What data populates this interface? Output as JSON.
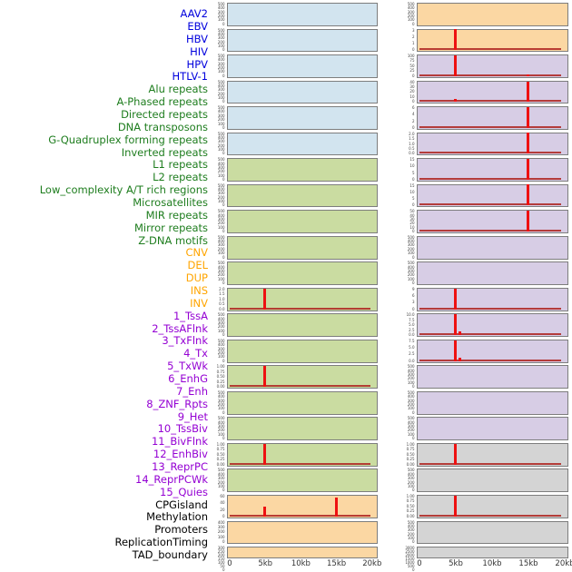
{
  "chart_data": {
    "type": "bar",
    "title": "",
    "x_axis": {
      "unit": "kb",
      "range_kb": [
        0,
        20
      ],
      "ticks": [
        "0",
        "5kb",
        "10kb",
        "15kb",
        "20kb"
      ]
    },
    "legend": "none",
    "grid": false,
    "group_colors": {
      "virus": {
        "label": "#0000dd",
        "bg": "#d2e4ef"
      },
      "repeat": {
        "label": "#1e7d1e",
        "bg": "#cadca1"
      },
      "sv": {
        "label": "#ffa500",
        "bg": "#fbd7a3"
      },
      "chromatin": {
        "label": "#9400d3",
        "bg": "#d7cde5"
      },
      "other": {
        "label": "#000000",
        "bg": "#d4d4d4"
      }
    },
    "spike_color": "#ee1111",
    "panels": [
      {
        "name": "AAV2",
        "group": "virus",
        "yticks": [
          "500",
          "400",
          "300",
          "200",
          "100",
          "0"
        ],
        "spikes": [],
        "baseline": false
      },
      {
        "name": "EBV",
        "group": "virus",
        "yticks": [
          "500",
          "400",
          "300",
          "200",
          "100",
          "0"
        ],
        "spikes": [],
        "baseline": false
      },
      {
        "name": "HBV",
        "group": "virus",
        "yticks": [
          "500",
          "400",
          "300",
          "200",
          "100",
          "0"
        ],
        "spikes": [],
        "baseline": false
      },
      {
        "name": "HIV",
        "group": "virus",
        "yticks": [
          "500",
          "400",
          "300",
          "200",
          "100",
          "0"
        ],
        "spikes": [],
        "baseline": false
      },
      {
        "name": "HPV",
        "group": "virus",
        "yticks": [
          "500",
          "400",
          "300",
          "200",
          "100",
          "0"
        ],
        "spikes": [],
        "baseline": false
      },
      {
        "name": "HTLV-1",
        "group": "virus",
        "yticks": [
          "500",
          "400",
          "300",
          "200",
          "100",
          "0"
        ],
        "spikes": [],
        "baseline": false
      },
      {
        "name": "Alu repeats",
        "group": "repeat",
        "yticks": [
          "500",
          "400",
          "300",
          "200",
          "100",
          "0"
        ],
        "spikes": [],
        "baseline": false
      },
      {
        "name": "A-Phased repeats",
        "group": "repeat",
        "yticks": [
          "500",
          "400",
          "300",
          "200",
          "100",
          "0"
        ],
        "spikes": [],
        "baseline": false
      },
      {
        "name": "Directed repeats",
        "group": "repeat",
        "yticks": [
          "500",
          "400",
          "300",
          "200",
          "100",
          "0"
        ],
        "spikes": [],
        "baseline": false
      },
      {
        "name": "DNA transposons",
        "group": "repeat",
        "yticks": [
          "500",
          "400",
          "300",
          "200",
          "100",
          "0"
        ],
        "spikes": [],
        "baseline": false
      },
      {
        "name": "G-Quadruplex forming repeats",
        "group": "repeat",
        "yticks": [
          "500",
          "400",
          "300",
          "200",
          "100",
          "0"
        ],
        "spikes": [],
        "baseline": false
      },
      {
        "name": "Inverted repeats",
        "group": "repeat",
        "yticks": [
          "2.0",
          "1.5",
          "1.0",
          "0.5",
          "0.0"
        ],
        "spikes": [
          {
            "kb": 5,
            "value": 2.0
          }
        ],
        "baseline": true
      },
      {
        "name": "L1 repeats",
        "group": "repeat",
        "yticks": [
          "500",
          "400",
          "300",
          "200",
          "100",
          "0"
        ],
        "spikes": [],
        "baseline": false
      },
      {
        "name": "L2 repeats",
        "group": "repeat",
        "yticks": [
          "500",
          "400",
          "300",
          "200",
          "100",
          "0"
        ],
        "spikes": [],
        "baseline": false
      },
      {
        "name": "Low_complexity A/T rich regions",
        "group": "repeat",
        "yticks": [
          "1.00",
          "0.75",
          "0.50",
          "0.25",
          "0.00"
        ],
        "spikes": [
          {
            "kb": 5,
            "value": 1.0
          }
        ],
        "baseline": true
      },
      {
        "name": "Microsatellites",
        "group": "repeat",
        "yticks": [
          "500",
          "400",
          "300",
          "200",
          "100",
          "0"
        ],
        "spikes": [],
        "baseline": false
      },
      {
        "name": "MIR repeats",
        "group": "repeat",
        "yticks": [
          "500",
          "400",
          "300",
          "200",
          "100",
          "0"
        ],
        "spikes": [],
        "baseline": false
      },
      {
        "name": "Mirror repeats",
        "group": "repeat",
        "yticks": [
          "1.00",
          "0.75",
          "0.50",
          "0.25",
          "0.00"
        ],
        "spikes": [
          {
            "kb": 5,
            "value": 1.0
          }
        ],
        "baseline": true
      },
      {
        "name": "Z-DNA motifs",
        "group": "repeat",
        "yticks": [
          "500",
          "400",
          "300",
          "200",
          "100",
          "0"
        ],
        "spikes": [],
        "baseline": false
      },
      {
        "name": "CNV",
        "group": "sv",
        "yticks": [
          "60",
          "40",
          "20",
          "0"
        ],
        "spikes": [
          {
            "kb": 5,
            "value": 28
          },
          {
            "kb": 15,
            "value": 56
          }
        ],
        "baseline": true
      },
      {
        "name": "DEL",
        "group": "sv",
        "yticks": [
          "400",
          "300",
          "200",
          "100",
          "0"
        ],
        "spikes": [],
        "baseline": false
      },
      {
        "name": "DUP",
        "group": "sv",
        "yticks": [
          "300",
          "250",
          "200",
          "150",
          "100",
          "50",
          "0"
        ],
        "spikes": [],
        "baseline": false
      },
      {
        "name": "INS",
        "group": "sv",
        "yticks": [
          "500",
          "400",
          "300",
          "200",
          "100",
          "0"
        ],
        "spikes": [],
        "baseline": false
      },
      {
        "name": "INV",
        "group": "sv",
        "yticks": [
          "3",
          "2",
          "1",
          "0"
        ],
        "spikes": [
          {
            "kb": 5,
            "value": 3
          }
        ],
        "baseline": true
      },
      {
        "name": "1_TssA",
        "group": "chromatin",
        "yticks": [
          "100",
          "75",
          "50",
          "25",
          "0"
        ],
        "spikes": [
          {
            "kb": 5,
            "value": 100
          },
          {
            "kb": 15,
            "value": 8
          }
        ],
        "baseline": true
      },
      {
        "name": "2_TssAFlnk",
        "group": "chromatin",
        "yticks": [
          "40",
          "30",
          "20",
          "10",
          "0"
        ],
        "spikes": [
          {
            "kb": 5,
            "value": 6
          },
          {
            "kb": 15,
            "value": 38
          }
        ],
        "baseline": true
      },
      {
        "name": "3_TxFlnk",
        "group": "chromatin",
        "yticks": [
          "6",
          "4",
          "2",
          "0"
        ],
        "spikes": [
          {
            "kb": 15,
            "value": 6
          }
        ],
        "baseline": true
      },
      {
        "name": "4_Tx",
        "group": "chromatin",
        "yticks": [
          "2.0",
          "1.5",
          "1.0",
          "0.5",
          "0.0"
        ],
        "spikes": [
          {
            "kb": 15,
            "value": 2.0
          }
        ],
        "baseline": true
      },
      {
        "name": "5_TxWk",
        "group": "chromatin",
        "yticks": [
          "15",
          "10",
          "5",
          "0"
        ],
        "spikes": [
          {
            "kb": 15,
            "value": 15
          }
        ],
        "baseline": true
      },
      {
        "name": "6_EnhG",
        "group": "chromatin",
        "yticks": [
          "15",
          "10",
          "5",
          "0"
        ],
        "spikes": [
          {
            "kb": 15,
            "value": 15
          }
        ],
        "baseline": true
      },
      {
        "name": "7_Enh",
        "group": "chromatin",
        "yticks": [
          "50",
          "40",
          "30",
          "20",
          "10",
          "0"
        ],
        "spikes": [
          {
            "kb": 15,
            "value": 50
          }
        ],
        "baseline": true
      },
      {
        "name": "8_ZNF_Rpts",
        "group": "chromatin",
        "yticks": [
          "500",
          "400",
          "300",
          "200",
          "100",
          "0"
        ],
        "spikes": [],
        "baseline": false
      },
      {
        "name": "9_Het",
        "group": "chromatin",
        "yticks": [
          "500",
          "400",
          "300",
          "200",
          "100",
          "0"
        ],
        "spikes": [],
        "baseline": false
      },
      {
        "name": "10_TssBiv",
        "group": "chromatin",
        "yticks": [
          "9",
          "6",
          "3",
          "0"
        ],
        "spikes": [
          {
            "kb": 5,
            "value": 9
          }
        ],
        "baseline": true
      },
      {
        "name": "11_BivFlnk",
        "group": "chromatin",
        "yticks": [
          "10.0",
          "7.5",
          "5.0",
          "2.5",
          "0.0"
        ],
        "spikes": [
          {
            "kb": 5,
            "value": 10
          },
          {
            "kb": 5.6,
            "value": 1.8
          }
        ],
        "baseline": true
      },
      {
        "name": "12_EnhBiv",
        "group": "chromatin",
        "yticks": [
          "7.5",
          "5.0",
          "2.5",
          "0.0"
        ],
        "spikes": [
          {
            "kb": 5,
            "value": 7.5
          },
          {
            "kb": 5.6,
            "value": 1.3
          }
        ],
        "baseline": true
      },
      {
        "name": "13_ReprPC",
        "group": "chromatin",
        "yticks": [
          "500",
          "400",
          "300",
          "200",
          "100",
          "0"
        ],
        "spikes": [],
        "baseline": false
      },
      {
        "name": "14_ReprPCWk",
        "group": "chromatin",
        "yticks": [
          "500",
          "400",
          "300",
          "200",
          "100",
          "0"
        ],
        "spikes": [],
        "baseline": false
      },
      {
        "name": "15_Quies",
        "group": "chromatin",
        "yticks": [
          "500",
          "400",
          "300",
          "200",
          "100",
          "0"
        ],
        "spikes": [],
        "baseline": false
      },
      {
        "name": "CPGisland",
        "group": "other",
        "yticks": [
          "1.00",
          "0.75",
          "0.50",
          "0.25",
          "0.00"
        ],
        "spikes": [
          {
            "kb": 5,
            "value": 1.0
          }
        ],
        "baseline": true
      },
      {
        "name": "Methylation",
        "group": "other",
        "yticks": [
          "500",
          "400",
          "300",
          "200",
          "100",
          "0"
        ],
        "spikes": [],
        "baseline": false
      },
      {
        "name": "Promoters",
        "group": "other",
        "yticks": [
          "1.00",
          "0.75",
          "0.50",
          "0.25",
          "0.00"
        ],
        "spikes": [
          {
            "kb": 5,
            "value": 1.0
          }
        ],
        "baseline": true
      },
      {
        "name": "ReplicationTiming",
        "group": "other",
        "yticks": [
          "500",
          "400",
          "300",
          "200",
          "100",
          "0"
        ],
        "spikes": [],
        "baseline": false
      },
      {
        "name": "TAD_boundary",
        "group": "other",
        "yticks": [
          "3000",
          "2500",
          "2000",
          "1500",
          "1000",
          "500",
          "0"
        ],
        "spikes": [],
        "baseline": false
      }
    ]
  }
}
